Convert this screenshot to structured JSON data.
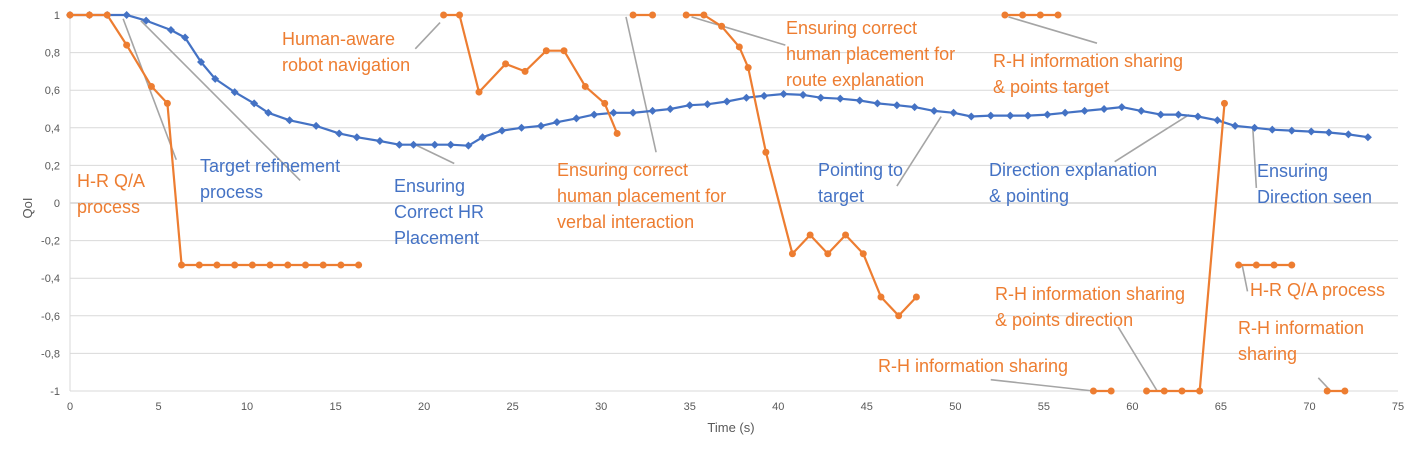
{
  "chart_data": {
    "type": "line",
    "xlabel": "Time (s)",
    "ylabel": "QoI",
    "xlim": [
      0,
      75
    ],
    "ylim": [
      -1,
      1
    ],
    "x_ticks": [
      "0",
      "5",
      "10",
      "15",
      "20",
      "25",
      "30",
      "35",
      "40",
      "45",
      "50",
      "55",
      "60",
      "65",
      "70",
      "75"
    ],
    "y_ticks": [
      "-1",
      "-0,8",
      "-0,6",
      "-0,4",
      "-0,2",
      "0",
      "0,2",
      "0,4",
      "0,6",
      "0,8",
      "1"
    ],
    "grid": "horizontal",
    "colors": {
      "blue": "#4472C4",
      "orange": "#ED7D31",
      "leader": "#A5A5A5",
      "grid": "#D9D9D9"
    },
    "series": [
      {
        "color": "#4472C4",
        "marker": "diamond",
        "segments": [
          [
            [
              0,
              1
            ],
            [
              1.1,
              1
            ],
            [
              2.1,
              1
            ],
            [
              3.2,
              1
            ],
            [
              4.3,
              0.97
            ],
            [
              5.7,
              0.92
            ],
            [
              6.5,
              0.88
            ],
            [
              7.4,
              0.75
            ],
            [
              8.2,
              0.66
            ],
            [
              9.3,
              0.59
            ],
            [
              10.4,
              0.53
            ],
            [
              11.2,
              0.48
            ],
            [
              12.4,
              0.44
            ],
            [
              13.9,
              0.41
            ],
            [
              15.2,
              0.37
            ],
            [
              16.2,
              0.35
            ],
            [
              17.5,
              0.33
            ],
            [
              18.6,
              0.31
            ],
            [
              19.4,
              0.31
            ],
            [
              20.6,
              0.31
            ],
            [
              21.5,
              0.31
            ],
            [
              22.5,
              0.305
            ],
            [
              23.3,
              0.35
            ],
            [
              24.4,
              0.385
            ],
            [
              25.5,
              0.4
            ],
            [
              26.6,
              0.41
            ],
            [
              27.5,
              0.43
            ],
            [
              28.6,
              0.45
            ],
            [
              29.6,
              0.47
            ],
            [
              30.7,
              0.48
            ],
            [
              31.8,
              0.48
            ],
            [
              32.9,
              0.49
            ],
            [
              33.9,
              0.5
            ],
            [
              35.0,
              0.52
            ],
            [
              36.0,
              0.525
            ],
            [
              37.1,
              0.54
            ],
            [
              38.2,
              0.56
            ],
            [
              39.2,
              0.57
            ],
            [
              40.3,
              0.58
            ],
            [
              41.4,
              0.575
            ],
            [
              42.4,
              0.56
            ],
            [
              43.5,
              0.555
            ],
            [
              44.6,
              0.545
            ],
            [
              45.6,
              0.53
            ],
            [
              46.7,
              0.52
            ],
            [
              47.7,
              0.51
            ],
            [
              48.8,
              0.49
            ],
            [
              49.9,
              0.48
            ],
            [
              50.9,
              0.46
            ],
            [
              52.0,
              0.465
            ],
            [
              53.1,
              0.465
            ],
            [
              54.1,
              0.465
            ],
            [
              55.2,
              0.47
            ],
            [
              56.2,
              0.48
            ],
            [
              57.3,
              0.49
            ],
            [
              58.4,
              0.5
            ],
            [
              59.4,
              0.51
            ],
            [
              60.5,
              0.49
            ],
            [
              61.6,
              0.47
            ],
            [
              62.6,
              0.47
            ],
            [
              63.7,
              0.46
            ],
            [
              64.8,
              0.44
            ],
            [
              65.8,
              0.41
            ],
            [
              66.9,
              0.4
            ],
            [
              67.9,
              0.39
            ],
            [
              69.0,
              0.385
            ],
            [
              70.1,
              0.38
            ],
            [
              71.1,
              0.375
            ],
            [
              72.2,
              0.365
            ],
            [
              73.3,
              0.35
            ]
          ]
        ]
      },
      {
        "color": "#ED7D31",
        "marker": "circle",
        "segments": [
          [
            [
              0,
              1
            ],
            [
              1.1,
              1
            ],
            [
              2.1,
              1
            ],
            [
              3.2,
              0.84
            ],
            [
              4.6,
              0.62
            ],
            [
              5.5,
              0.53
            ],
            [
              6.3,
              -0.33
            ],
            [
              7.3,
              -0.33
            ],
            [
              8.3,
              -0.33
            ],
            [
              9.3,
              -0.33
            ],
            [
              10.3,
              -0.33
            ],
            [
              11.3,
              -0.33
            ],
            [
              12.3,
              -0.33
            ],
            [
              13.3,
              -0.33
            ],
            [
              14.3,
              -0.33
            ],
            [
              15.3,
              -0.33
            ],
            [
              16.3,
              -0.33
            ]
          ],
          [
            [
              21.1,
              1
            ],
            [
              22.0,
              1
            ],
            [
              23.1,
              0.59
            ],
            [
              24.6,
              0.74
            ],
            [
              25.7,
              0.7
            ],
            [
              26.9,
              0.81
            ],
            [
              27.9,
              0.81
            ],
            [
              29.1,
              0.62
            ],
            [
              30.2,
              0.53
            ],
            [
              30.9,
              0.37
            ]
          ],
          [
            [
              31.8,
              1
            ],
            [
              32.9,
              1
            ]
          ],
          [
            [
              34.8,
              1
            ],
            [
              35.8,
              1
            ],
            [
              36.8,
              0.94
            ],
            [
              37.8,
              0.83
            ],
            [
              38.3,
              0.72
            ],
            [
              39.3,
              0.27
            ],
            [
              40.8,
              -0.27
            ],
            [
              41.8,
              -0.17
            ],
            [
              42.8,
              -0.27
            ],
            [
              43.8,
              -0.17
            ],
            [
              44.8,
              -0.27
            ],
            [
              45.8,
              -0.5
            ],
            [
              46.8,
              -0.6
            ],
            [
              47.8,
              -0.5
            ]
          ],
          [
            [
              52.8,
              1
            ],
            [
              53.8,
              1
            ],
            [
              54.8,
              1
            ],
            [
              55.8,
              1
            ]
          ],
          [
            [
              57.8,
              -1
            ],
            [
              58.8,
              -1
            ]
          ],
          [
            [
              60.8,
              -1
            ],
            [
              61.8,
              -1
            ],
            [
              62.8,
              -1
            ],
            [
              63.8,
              -1
            ],
            [
              65.2,
              0.53
            ]
          ],
          [
            [
              66.0,
              -0.33
            ],
            [
              67.0,
              -0.33
            ],
            [
              68.0,
              -0.33
            ],
            [
              69.0,
              -0.33
            ]
          ],
          [
            [
              71.0,
              -1
            ],
            [
              72.0,
              -1
            ]
          ]
        ]
      }
    ],
    "annotations": [
      {
        "lines": [
          "H-R Q/A",
          "process"
        ],
        "color": "orange",
        "anchor": [
          3,
          0.98
        ],
        "tip": [
          6,
          0.23
        ]
      },
      {
        "lines": [
          "Target refinement",
          "process"
        ],
        "color": "blue",
        "anchor": [
          4,
          0.97
        ],
        "tip": [
          13,
          0.12
        ]
      },
      {
        "lines": [
          "Human-aware",
          "robot navigation"
        ],
        "color": "orange",
        "anchor": [
          20.9,
          0.96
        ],
        "tip": [
          19.5,
          0.82
        ]
      },
      {
        "lines": [
          "Ensuring",
          "Correct HR",
          "Placement"
        ],
        "color": "blue",
        "anchor": [
          19.5,
          0.31
        ],
        "tip": [
          21.7,
          0.21
        ]
      },
      {
        "lines": [
          "Ensuring correct",
          "human placement for",
          "verbal interaction"
        ],
        "color": "orange",
        "anchor": [
          31.4,
          0.99
        ],
        "tip": [
          33.1,
          0.27
        ]
      },
      {
        "lines": [
          "Ensuring correct",
          "human placement for",
          "route explanation"
        ],
        "color": "orange",
        "anchor": [
          35.1,
          0.99
        ],
        "tip": [
          40.4,
          0.84
        ]
      },
      {
        "lines": [
          "Pointing to",
          "target"
        ],
        "color": "blue",
        "anchor": [
          49.2,
          0.46
        ],
        "tip": [
          46.7,
          0.09
        ]
      },
      {
        "lines": [
          "R-H information sharing",
          "& points target"
        ],
        "color": "orange",
        "anchor": [
          53.0,
          0.99
        ],
        "tip": [
          58.0,
          0.85
        ]
      },
      {
        "lines": [
          "Direction explanation",
          "& pointing"
        ],
        "color": "blue",
        "anchor": [
          59.0,
          0.22
        ],
        "tip": [
          63.2,
          0.47
        ]
      },
      {
        "lines": [
          "Ensuring",
          "Direction seen"
        ],
        "color": "blue",
        "anchor": [
          66.8,
          0.4
        ],
        "tip": [
          67.0,
          0.08
        ]
      },
      {
        "lines": [
          "R-H information sharing",
          "& points direction"
        ],
        "color": "orange",
        "anchor": [
          59.2,
          -0.66
        ],
        "tip": [
          61.4,
          -1
        ]
      },
      {
        "lines": [
          "R-H information sharing"
        ],
        "color": "orange",
        "anchor": [
          52.0,
          -0.94
        ],
        "tip": [
          57.8,
          -1
        ]
      },
      {
        "lines": [
          "H-R Q/A process"
        ],
        "color": "orange",
        "anchor": [
          66.2,
          -0.33
        ],
        "tip": [
          66.5,
          -0.47
        ]
      },
      {
        "lines": [
          "R-H information",
          "sharing"
        ],
        "color": "orange",
        "anchor": [
          70.5,
          -0.93
        ],
        "tip": [
          71.2,
          -1
        ]
      }
    ]
  }
}
